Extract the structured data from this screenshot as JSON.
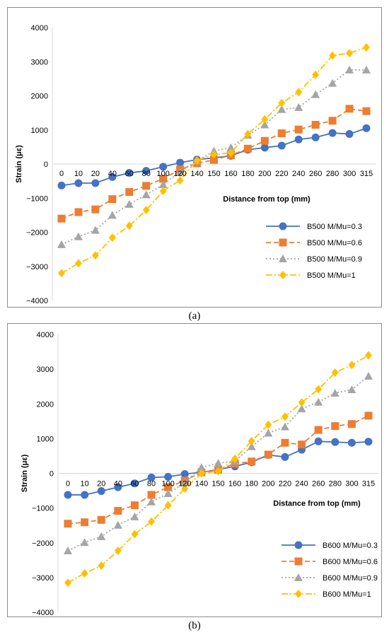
{
  "chart_data": [
    {
      "type": "line",
      "caption": "(a)",
      "xlabel": "Distance from top (mm)",
      "ylabel": "Strain (με)",
      "categories": [
        "0",
        "10",
        "20",
        "40",
        "60",
        "80",
        "100",
        "120",
        "140",
        "150",
        "160",
        "180",
        "200",
        "220",
        "240",
        "260",
        "280",
        "300",
        "315"
      ],
      "yticks": [
        "4000",
        "3000",
        "2000",
        "1000",
        "0",
        "−1000",
        "−2000",
        "−3000",
        "−4000"
      ],
      "ylim": [
        -4000,
        4000
      ],
      "legend_position": "lower-right",
      "grid": false,
      "series": [
        {
          "name": "B500 M/Mu=0.3",
          "color": "#4472C4",
          "marker": "circle",
          "dash": "solid",
          "values": [
            -630,
            -560,
            -560,
            -380,
            -260,
            -200,
            -80,
            40,
            130,
            180,
            240,
            420,
            480,
            540,
            720,
            780,
            910,
            880,
            1050
          ]
        },
        {
          "name": "B500 M/Mu=0.6",
          "color": "#ED7D31",
          "marker": "square",
          "dash": "dash",
          "values": [
            -1600,
            -1410,
            -1330,
            -1030,
            -820,
            -640,
            -430,
            -160,
            20,
            120,
            260,
            450,
            680,
            900,
            1010,
            1150,
            1270,
            1620,
            1550
          ]
        },
        {
          "name": "B500 M/Mu=0.9",
          "color": "#A5A5A5",
          "marker": "triangle",
          "dash": "dot",
          "values": [
            -2360,
            -2130,
            -1940,
            -1500,
            -1180,
            -900,
            -600,
            -230,
            90,
            380,
            480,
            850,
            1150,
            1600,
            1660,
            2040,
            2370,
            2760,
            2760
          ]
        },
        {
          "name": "B500 M/Mu=1",
          "color": "#FFC000",
          "marker": "diamond",
          "dash": "dashdot",
          "values": [
            -3200,
            -2910,
            -2680,
            -2160,
            -1810,
            -1350,
            -790,
            -480,
            110,
            280,
            330,
            880,
            1310,
            1790,
            2110,
            2620,
            3180,
            3250,
            3420
          ]
        }
      ]
    },
    {
      "type": "line",
      "caption": "(b)",
      "xlabel": "Distance from top (mm)",
      "ylabel": "Strain (με)",
      "categories": [
        "0",
        "10",
        "20",
        "40",
        "60",
        "80",
        "100",
        "120",
        "140",
        "150",
        "160",
        "180",
        "200",
        "220",
        "240",
        "260",
        "280",
        "300",
        "315"
      ],
      "yticks": [
        "4000",
        "3000",
        "2000",
        "1000",
        "0",
        "−1000",
        "−2000",
        "−3000",
        "−4000"
      ],
      "ylim": [
        -4000,
        4000
      ],
      "legend_position": "lower-right",
      "grid": false,
      "series": [
        {
          "name": "B600 M/Mu=0.3",
          "color": "#4472C4",
          "marker": "circle",
          "dash": "solid",
          "values": [
            -620,
            -620,
            -510,
            -400,
            -290,
            -120,
            -100,
            -20,
            30,
            110,
            200,
            320,
            530,
            470,
            680,
            920,
            900,
            880,
            910
          ]
        },
        {
          "name": "B600 M/Mu=0.6",
          "color": "#ED7D31",
          "marker": "square",
          "dash": "dash",
          "values": [
            -1450,
            -1410,
            -1340,
            -1080,
            -920,
            -620,
            -400,
            -210,
            30,
            100,
            280,
            340,
            540,
            880,
            830,
            1250,
            1360,
            1420,
            1660
          ]
        },
        {
          "name": "B600 M/Mu=0.9",
          "color": "#A5A5A5",
          "marker": "triangle",
          "dash": "dot",
          "values": [
            -2230,
            -1990,
            -1820,
            -1490,
            -1250,
            -820,
            -580,
            -270,
            170,
            290,
            350,
            770,
            1160,
            1340,
            1860,
            2050,
            2310,
            2410,
            2800
          ]
        },
        {
          "name": "B600 M/Mu=1",
          "color": "#FFC000",
          "marker": "diamond",
          "dash": "dashdot",
          "values": [
            -3150,
            -2880,
            -2660,
            -2230,
            -1750,
            -1390,
            -920,
            -440,
            0,
            60,
            420,
            930,
            1400,
            1630,
            2040,
            2420,
            2900,
            3120,
            3400
          ]
        }
      ]
    }
  ]
}
